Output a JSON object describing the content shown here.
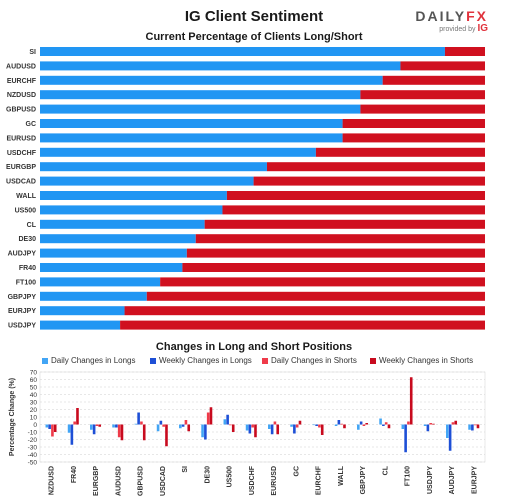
{
  "header": {
    "title": "IG Client Sentiment",
    "logo_main": "DAILY",
    "logo_fx": "FX",
    "logo_sub": "provided by",
    "logo_ig": "IG"
  },
  "colors": {
    "long": "#2196f3",
    "short": "#d0101f",
    "daily_long": "#42a5f5",
    "weekly_long": "#1e4fd6",
    "daily_short": "#ef3b4a",
    "weekly_short": "#c80a1e"
  },
  "chart_data": [
    {
      "type": "bar",
      "orientation": "horizontal",
      "stacked": true,
      "title": "Current Percentage of Clients Long/Short",
      "categories": [
        "SI",
        "AUDUSD",
        "EURCHF",
        "NZDUSD",
        "GBPUSD",
        "GC",
        "EURUSD",
        "USDCHF",
        "EURGBP",
        "USDCAD",
        "WALL",
        "US500",
        "CL",
        "DE30",
        "AUDJPY",
        "FR40",
        "FT100",
        "GBPJPY",
        "EURJPY",
        "USDJPY"
      ],
      "series": [
        {
          "values": [
            91,
            81,
            77,
            72,
            72,
            68,
            68,
            62,
            51,
            48,
            42,
            41,
            37,
            35,
            33,
            32,
            27,
            24,
            19,
            18
          ]
        },
        {
          "values": [
            9,
            19,
            23,
            28,
            28,
            32,
            32,
            38,
            49,
            52,
            58,
            59,
            63,
            65,
            67,
            68,
            73,
            76,
            81,
            82
          ]
        }
      ],
      "xlim": [
        0,
        100
      ]
    },
    {
      "type": "bar",
      "title": "Changes in Long and Short Positions",
      "ylabel": "Percentage Change (%)",
      "ylim": [
        -50,
        70
      ],
      "yticks": [
        70,
        60,
        50,
        40,
        30,
        20,
        10,
        0,
        -10,
        -20,
        -30,
        -40,
        -50
      ],
      "categories": [
        "NZDUSD",
        "FR40",
        "EURGBP",
        "AUDUSD",
        "GBPUSD",
        "USDCAD",
        "SI",
        "DE30",
        "US500",
        "USDCHF",
        "EURUSD",
        "GC",
        "EURCHF",
        "WALL",
        "GBPJPY",
        "CL",
        "FT100",
        "USDJPY",
        "AUDJPY",
        "EURJPY"
      ],
      "series": [
        {
          "name": "Daily Changes in Longs",
          "values": [
            -4,
            -11,
            -7,
            -4,
            1,
            -9,
            -5,
            -17,
            7,
            -8,
            -6,
            -3,
            0,
            -2,
            -7,
            8,
            -6,
            -2,
            -18,
            -7
          ]
        },
        {
          "name": "Weekly Changes in Longs",
          "values": [
            -6,
            -27,
            -13,
            -4,
            16,
            5,
            -3,
            -20,
            13,
            -12,
            -13,
            -12,
            -2,
            6,
            4,
            -2,
            -37,
            -9,
            -35,
            -8
          ]
        },
        {
          "name": "Daily Changes in Shorts",
          "values": [
            -16,
            4,
            -2,
            -17,
            4,
            -3,
            6,
            16,
            -1,
            -4,
            4,
            -4,
            -4,
            1,
            -2,
            3,
            4,
            2,
            3,
            -1
          ]
        },
        {
          "name": "Weekly Changes in Shorts",
          "values": [
            -10,
            22,
            -3,
            -21,
            -21,
            -29,
            -9,
            23,
            -10,
            -17,
            -13,
            5,
            -14,
            -5,
            2,
            -5,
            63,
            1,
            5,
            -5
          ]
        }
      ]
    }
  ]
}
